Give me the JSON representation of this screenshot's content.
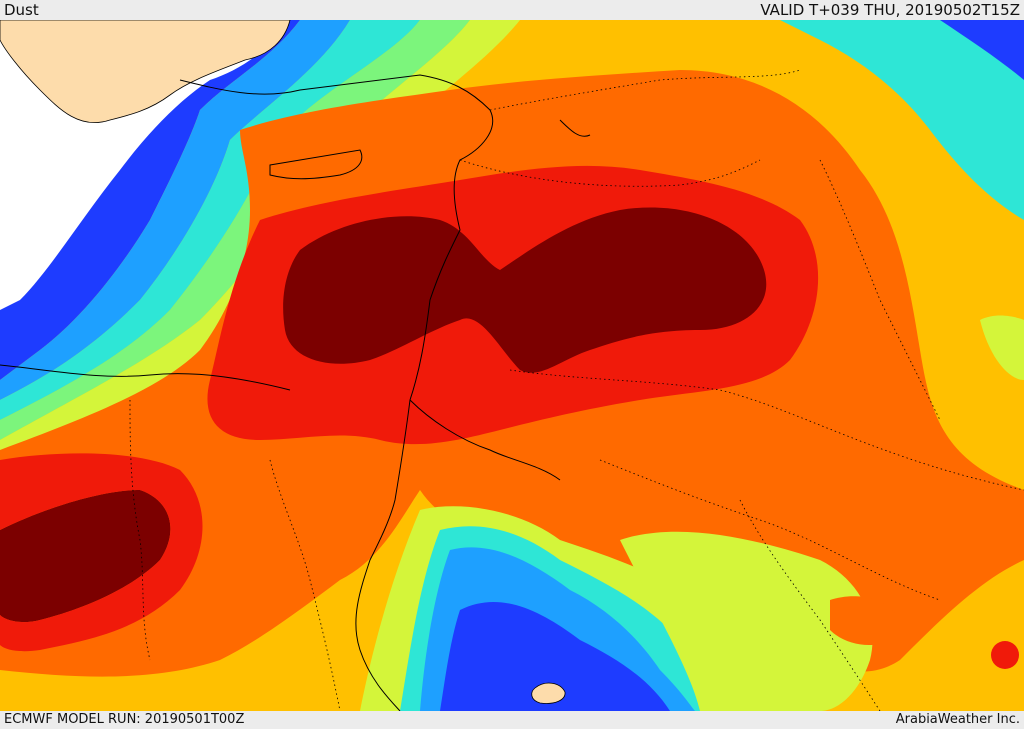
{
  "header": {
    "parameter_label": "Dust",
    "valid_time_label": "VALID T+039 THU, 20190502T15Z"
  },
  "footer": {
    "model_run_label": "ECMWF MODEL RUN: 20190501T00Z",
    "credit_label": "ArabiaWeather Inc."
  },
  "map": {
    "field": "dust concentration",
    "colors": {
      "sea_white": "#ffffff",
      "land_tan": "#fddcab",
      "level_1": "#1e3cff",
      "level_2": "#0a5cff",
      "level_3": "#1ea0ff",
      "level_4": "#2ee6d6",
      "level_5": "#7cf57c",
      "level_6": "#d4f53a",
      "level_7": "#ffd21e",
      "level_8": "#ffb400",
      "level_9": "#ff6a00",
      "level_10": "#f01a0a",
      "level_11": "#7c0000"
    },
    "borders": "country borders shown as dotted lines, coastlines as solid black lines"
  }
}
